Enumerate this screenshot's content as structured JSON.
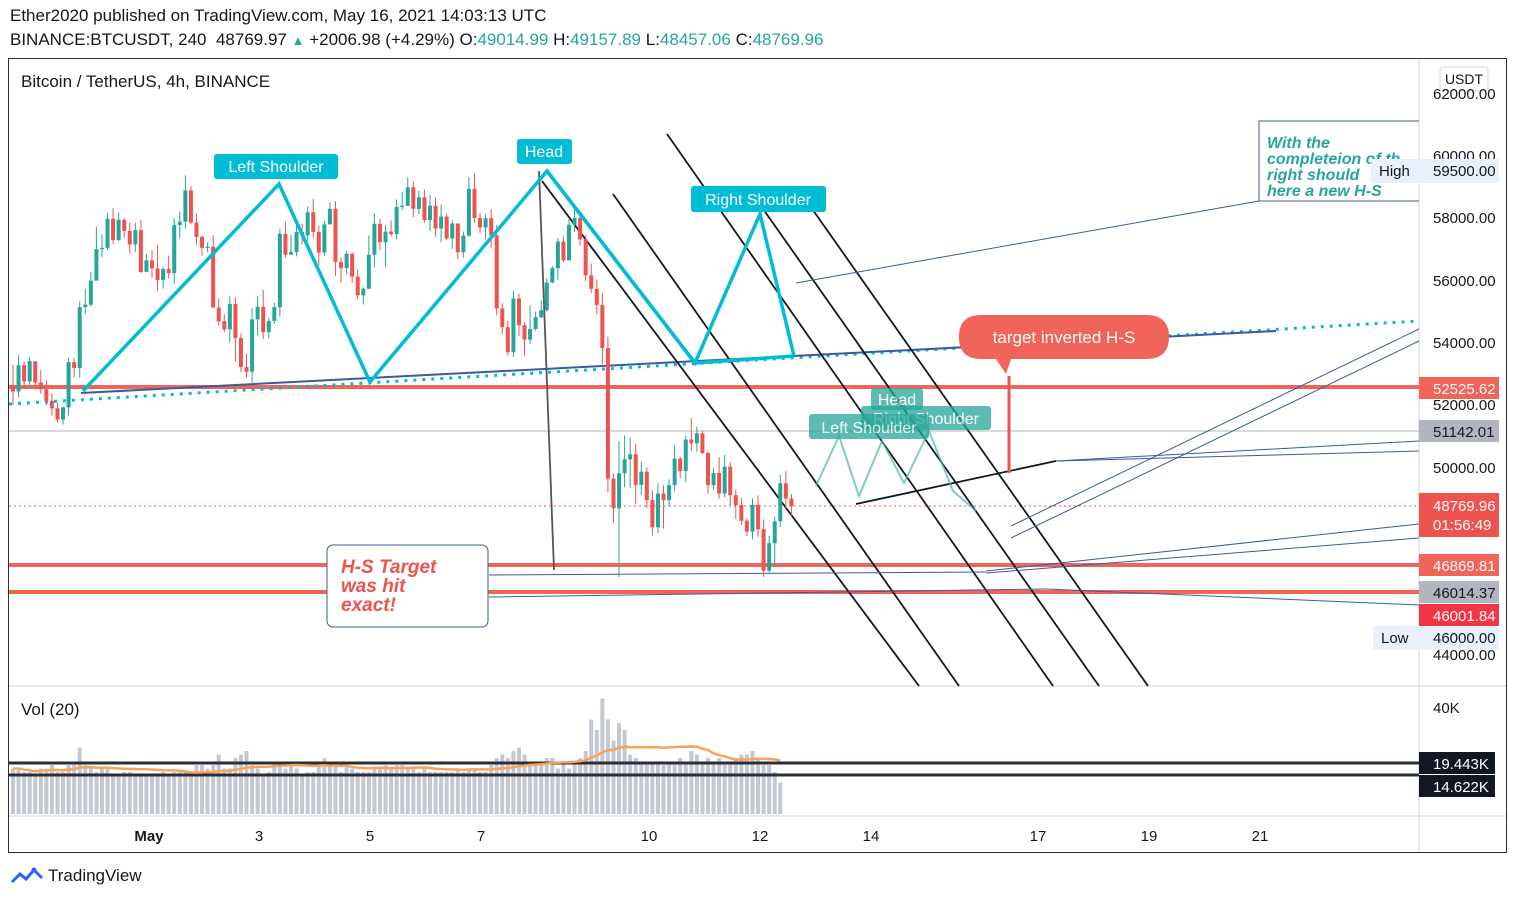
{
  "header": {
    "published_line": "Ether2020 published on TradingView.com, May 16, 2021 14:03:13 UTC",
    "symbol": "BINANCE:BTCUSDT, 240",
    "last": "48769.97",
    "change": "+2006.98 (+4.29%)",
    "o_label": "O:",
    "o_val": "49014.99",
    "h_label": "H:",
    "h_val": "49157.89",
    "l_label": "L:",
    "l_val": "48457.06",
    "c_label": "C:",
    "c_val": "48769.96"
  },
  "pane": {
    "title": "Bitcoin / TetherUS, 4h, BINANCE",
    "currency": "USDT",
    "vol_label": "Vol (20)"
  },
  "annotations": {
    "left_shoulder": "Left Shoulder",
    "head": "Head",
    "right_shoulder": "Right Shoulder",
    "left_shoulder_2": "Left Shoulder",
    "head_2": "Head",
    "right_shoulder_2": "Right Shoulder",
    "target_inverted": "target inverted H-S",
    "hs_target_1": "H-S Target",
    "hs_target_2": "was hit",
    "hs_target_3": "exact!",
    "note_1": "With the",
    "note_2": "completeion of th",
    "note_3": "right should",
    "note_4": "here a new H-S"
  },
  "price_axis": {
    "ticks": [
      "62000.00",
      "60000.00",
      "58000.00",
      "56000.00",
      "54000.00",
      "52000.00",
      "50000.00",
      "44000.00"
    ],
    "high_label": "High",
    "high_val": "59500.00",
    "low_label": "Low",
    "low_val": "46000.00",
    "badges": {
      "b52525": "52525.62",
      "b51142": "51142.01",
      "b48769": "48769.96",
      "countdown": "01:56:49",
      "b46869": "46869.81",
      "b46014": "46014.37",
      "b46001": "46001.84"
    },
    "vol_ticks": [
      "40K"
    ],
    "vol_badge_1": "19.443K",
    "vol_badge_2": "14.622K"
  },
  "time_axis": [
    "May",
    "3",
    "5",
    "7",
    "10",
    "12",
    "14",
    "17",
    "19",
    "21"
  ],
  "footer": {
    "brand": "TradingView"
  },
  "colors": {
    "bull": "#26a69a",
    "bear": "#ef5350",
    "pattern": "#00bcd4",
    "red_line": "#f0645a",
    "blue_line": "#3d5a9e",
    "gray_badge": "#b2b5be",
    "vol": "#c5c8d2",
    "ma": "#f7a35c"
  },
  "chart_data": {
    "type": "candlestick",
    "title": "Bitcoin / TetherUS, 4h, BINANCE",
    "interval": "4h",
    "y_range": [
      43500,
      62500
    ],
    "levels": [
      52525.62,
      51142.01,
      46869.81,
      46014.37,
      46001.84
    ],
    "last_close": 48769.96,
    "high": 59500.0,
    "low": 46000.0,
    "candles": [
      [
        52620,
        52440,
        53300,
        52000
      ],
      [
        52440,
        53280,
        53600,
        52250
      ],
      [
        53290,
        52760,
        53410,
        52560
      ],
      [
        52760,
        53410,
        53530,
        52570
      ],
      [
        53410,
        52730,
        53010,
        52500
      ],
      [
        52730,
        52510,
        53130,
        52370
      ],
      [
        52510,
        52140,
        52810,
        51990
      ],
      [
        52140,
        51900,
        52370,
        51670
      ],
      [
        51900,
        51540,
        52080,
        51450
      ],
      [
        51540,
        51930,
        51960,
        51380
      ],
      [
        51930,
        53380,
        53520,
        51680
      ],
      [
        53380,
        53190,
        53510,
        52890
      ],
      [
        53190,
        55140,
        55330,
        52880
      ],
      [
        55140,
        55220,
        55730,
        54920
      ],
      [
        55220,
        55990,
        56260,
        55160
      ],
      [
        55990,
        57000,
        57720,
        56870
      ],
      [
        57000,
        57040,
        57470,
        56750
      ],
      [
        57040,
        57970,
        58170,
        56980
      ],
      [
        57970,
        57290,
        58310,
        57160
      ],
      [
        57290,
        57940,
        58170,
        57250
      ],
      [
        57940,
        57580,
        57980,
        57360
      ],
      [
        57580,
        57150,
        57850,
        56850
      ],
      [
        57150,
        57610,
        57840,
        56910
      ],
      [
        57610,
        56270,
        57930,
        56230
      ],
      [
        56270,
        56640,
        56860,
        56310
      ],
      [
        56640,
        56380,
        56970,
        56080
      ],
      [
        56380,
        56010,
        57130,
        55650
      ],
      [
        56010,
        56360,
        56440,
        55730
      ],
      [
        56360,
        56230,
        56790,
        56060
      ],
      [
        56230,
        57770,
        57990,
        55890
      ],
      [
        57770,
        57880,
        58210,
        57350
      ],
      [
        57880,
        58880,
        59360,
        57650
      ],
      [
        58880,
        57850,
        59010,
        57790
      ],
      [
        57850,
        57390,
        58140,
        57140
      ],
      [
        57390,
        57040,
        57430,
        56790
      ],
      [
        57040,
        57080,
        57210,
        56900
      ],
      [
        57080,
        55130,
        57450,
        55110
      ],
      [
        55130,
        54690,
        55420,
        54550
      ],
      [
        54690,
        54430,
        54910,
        54340
      ],
      [
        54430,
        55240,
        55480,
        54020
      ],
      [
        55240,
        54150,
        55460,
        53400
      ],
      [
        54150,
        53220,
        54300,
        53060
      ],
      [
        53220,
        53070,
        53660,
        52890
      ],
      [
        53070,
        54750,
        55110,
        52680
      ],
      [
        54750,
        55150,
        55490,
        54230
      ],
      [
        55150,
        54340,
        55700,
        54120
      ],
      [
        54340,
        54700,
        54790,
        54150
      ],
      [
        54700,
        55140,
        55280,
        54610
      ],
      [
        55140,
        57490,
        57660,
        54840
      ],
      [
        57490,
        56820,
        57880,
        56720
      ],
      [
        56820,
        56910,
        57460,
        56840
      ],
      [
        56910,
        57550,
        57850,
        56770
      ],
      [
        57550,
        57440,
        57810,
        57150
      ],
      [
        57440,
        58180,
        58360,
        57260
      ],
      [
        58180,
        57550,
        58610,
        57350
      ],
      [
        57550,
        56890,
        57750,
        56480
      ],
      [
        56890,
        57790,
        57900,
        56770
      ],
      [
        57790,
        58290,
        58490,
        57810
      ],
      [
        58290,
        56590,
        58540,
        56140
      ],
      [
        56590,
        56390,
        56730,
        55920
      ],
      [
        56390,
        56850,
        56940,
        56180
      ],
      [
        56850,
        56120,
        56890,
        55910
      ],
      [
        56120,
        55520,
        56360,
        55400
      ],
      [
        55520,
        55730,
        55780,
        55230
      ],
      [
        55730,
        56820,
        57440,
        55730
      ],
      [
        56820,
        57810,
        58140,
        56420
      ],
      [
        57810,
        57220,
        57980,
        56970
      ],
      [
        57220,
        57560,
        57770,
        56420
      ],
      [
        57560,
        57480,
        57920,
        57400
      ],
      [
        57480,
        58350,
        58590,
        57310
      ],
      [
        58350,
        58390,
        58840,
        58250
      ],
      [
        58390,
        58980,
        59300,
        58380
      ],
      [
        58980,
        58290,
        59170,
        58020
      ],
      [
        58290,
        58660,
        58870,
        58120
      ],
      [
        58660,
        57930,
        58910,
        57840
      ],
      [
        57930,
        58390,
        58720,
        57580
      ],
      [
        58390,
        57660,
        58650,
        57390
      ],
      [
        57660,
        58040,
        58420,
        57220
      ],
      [
        58040,
        57340,
        58120,
        57290
      ],
      [
        57340,
        57820,
        57930,
        57000
      ],
      [
        57820,
        56900,
        57800,
        56680
      ],
      [
        56900,
        57430,
        57560,
        56730
      ],
      [
        57430,
        58930,
        59310,
        57400
      ],
      [
        58930,
        58000,
        59430,
        57840
      ],
      [
        58000,
        57690,
        58160,
        57520
      ],
      [
        57690,
        57990,
        58120,
        57310
      ],
      [
        57990,
        57440,
        58280,
        57040
      ],
      [
        57440,
        55100,
        57770,
        54870
      ],
      [
        55100,
        54500,
        55270,
        54270
      ],
      [
        54500,
        53700,
        54700,
        53590
      ],
      [
        53700,
        55420,
        55670,
        53550
      ],
      [
        55420,
        54560,
        55570,
        54220
      ],
      [
        54560,
        54100,
        54650,
        53580
      ],
      [
        54100,
        54440,
        55210,
        53960
      ],
      [
        54440,
        54820,
        55000,
        54390
      ],
      [
        54820,
        55040,
        55360,
        54790
      ],
      [
        55040,
        55930,
        56070,
        55000
      ],
      [
        55930,
        56390,
        56460,
        55900
      ],
      [
        56390,
        57240,
        57360,
        56020
      ],
      [
        57240,
        56640,
        57410,
        56590
      ],
      [
        56640,
        57780,
        58000,
        56710
      ],
      [
        57780,
        58000,
        58300,
        57550
      ],
      [
        58000,
        57310,
        58220,
        57110
      ],
      [
        57310,
        56160,
        57460,
        55980
      ],
      [
        56160,
        55730,
        56540,
        55600
      ],
      [
        55730,
        55210,
        56030,
        54920
      ],
      [
        55210,
        53830,
        55590,
        53310
      ],
      [
        53830,
        49650,
        54190,
        49210
      ],
      [
        49650,
        48700,
        49810,
        48240
      ],
      [
        48700,
        49820,
        50850,
        46500
      ],
      [
        49820,
        50270,
        51030,
        49380
      ],
      [
        50270,
        50430,
        50970,
        49360
      ],
      [
        50430,
        49450,
        50760,
        48830
      ],
      [
        49450,
        49870,
        50190,
        49130
      ],
      [
        49870,
        48960,
        50010,
        48700
      ],
      [
        48960,
        48090,
        49270,
        47820
      ],
      [
        48090,
        49170,
        49500,
        47900
      ],
      [
        49170,
        48960,
        49440,
        48050
      ],
      [
        48960,
        49440,
        49630,
        48750
      ],
      [
        49440,
        50290,
        50730,
        49240
      ],
      [
        50290,
        49890,
        50350,
        49660
      ],
      [
        49890,
        50900,
        51020,
        49540
      ],
      [
        50900,
        50780,
        51590,
        50530
      ],
      [
        50780,
        51100,
        51310,
        50510
      ],
      [
        51100,
        50470,
        51190,
        50430
      ],
      [
        50470,
        49440,
        50510,
        49170
      ],
      [
        49440,
        49830,
        49990,
        49280
      ],
      [
        49830,
        49170,
        50340,
        49000
      ],
      [
        49170,
        50030,
        50410,
        49050
      ],
      [
        50030,
        49120,
        50190,
        48790
      ],
      [
        49120,
        48800,
        49300,
        48350
      ],
      [
        48800,
        48300,
        49030,
        48170
      ],
      [
        48300,
        47950,
        48390,
        47810
      ],
      [
        47950,
        48810,
        49020,
        47700
      ],
      [
        48810,
        48030,
        49110,
        47790
      ],
      [
        48030,
        46700,
        48340,
        46500
      ],
      [
        46700,
        47580,
        47820,
        46640
      ],
      [
        47580,
        48280,
        48430,
        46860
      ],
      [
        48280,
        49500,
        49770,
        48100
      ],
      [
        49500,
        49010,
        49890,
        48700
      ],
      [
        49010,
        48770,
        49160,
        48460
      ]
    ],
    "volume": [
      13,
      13,
      12,
      12,
      11,
      13,
      13,
      14,
      12,
      12,
      14,
      15,
      19,
      14,
      13,
      12,
      13,
      13,
      11,
      11,
      12,
      12,
      11,
      11,
      11,
      11,
      11,
      12,
      11,
      12,
      12,
      12,
      12,
      14,
      14,
      13,
      14,
      17,
      13,
      13,
      16,
      17,
      18,
      14,
      13,
      11,
      12,
      15,
      14,
      13,
      14,
      13,
      11,
      12,
      12,
      15,
      16,
      14,
      14,
      12,
      14,
      13,
      12,
      12,
      12,
      13,
      13,
      14,
      13,
      14,
      14,
      13,
      13,
      12,
      13,
      12,
      12,
      12,
      12,
      12,
      13,
      12,
      13,
      13,
      12,
      12,
      14,
      16,
      17,
      16,
      18,
      19,
      17,
      15,
      15,
      14,
      16,
      16,
      13,
      15,
      13,
      15,
      16,
      18,
      27,
      24,
      33,
      27,
      21,
      26,
      24,
      17,
      16,
      15,
      15,
      15,
      15,
      14,
      15,
      15,
      16,
      15,
      18,
      17,
      15,
      16,
      15,
      16,
      15,
      15,
      16,
      17,
      17,
      18,
      16,
      14,
      14,
      12,
      9
    ],
    "volume_ma_levels": [
      19.443,
      14.622
    ],
    "x_labels": [
      "May",
      "3",
      "5",
      "7",
      "10",
      "12",
      "14",
      "17",
      "19",
      "21"
    ]
  }
}
